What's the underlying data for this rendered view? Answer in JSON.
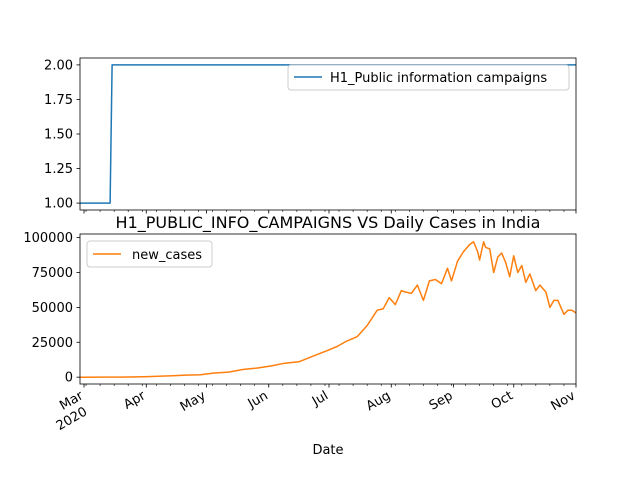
{
  "figure": {
    "xlabel": "Date",
    "month_ticks": [
      "Mar",
      "Apr",
      "May",
      "Jun",
      "Jul",
      "Aug",
      "Sep",
      "Oct",
      "Nov"
    ],
    "year_label": "2020"
  },
  "chart_data": [
    {
      "type": "line",
      "title": "",
      "xlabel": "",
      "ylabel": "",
      "x_range": [
        "2020-02-28",
        "2020-11-01"
      ],
      "ylim": [
        0.95,
        2.05
      ],
      "yticks": [
        "1.00",
        "1.25",
        "1.50",
        "1.75",
        "2.00"
      ],
      "grid": false,
      "legend_position": "top-right",
      "series": [
        {
          "name": "H1_Public information campaigns",
          "color": "#1f77b4",
          "x": [
            "2020-02-28",
            "2020-03-14",
            "2020-03-15",
            "2020-11-01"
          ],
          "y": [
            1,
            1,
            2,
            2
          ]
        }
      ]
    },
    {
      "type": "line",
      "title": "H1_PUBLIC_INFO_CAMPAIGNS VS Daily Cases in India",
      "xlabel": "Date",
      "ylabel": "",
      "x_range": [
        "2020-02-28",
        "2020-11-01"
      ],
      "ylim": [
        -4900,
        102600
      ],
      "yticks": [
        "0",
        "25000",
        "50000",
        "75000",
        "100000"
      ],
      "grid": false,
      "legend_position": "top-left",
      "series": [
        {
          "name": "new_cases",
          "color": "#ff7f0e",
          "x": [
            "2020-02-28",
            "2020-03-10",
            "2020-03-20",
            "2020-03-31",
            "2020-04-07",
            "2020-04-14",
            "2020-04-21",
            "2020-04-28",
            "2020-05-05",
            "2020-05-12",
            "2020-05-19",
            "2020-05-26",
            "2020-06-02",
            "2020-06-09",
            "2020-06-16",
            "2020-06-23",
            "2020-06-30",
            "2020-07-05",
            "2020-07-10",
            "2020-07-15",
            "2020-07-20",
            "2020-07-25",
            "2020-07-28",
            "2020-07-31",
            "2020-08-03",
            "2020-08-06",
            "2020-08-08",
            "2020-08-11",
            "2020-08-14",
            "2020-08-17",
            "2020-08-20",
            "2020-08-23",
            "2020-08-26",
            "2020-08-29",
            "2020-08-31",
            "2020-09-03",
            "2020-09-06",
            "2020-09-09",
            "2020-09-11",
            "2020-09-13",
            "2020-09-14",
            "2020-09-16",
            "2020-09-17",
            "2020-09-19",
            "2020-09-21",
            "2020-09-23",
            "2020-09-25",
            "2020-09-27",
            "2020-09-29",
            "2020-10-01",
            "2020-10-03",
            "2020-10-05",
            "2020-10-07",
            "2020-10-09",
            "2020-10-12",
            "2020-10-14",
            "2020-10-17",
            "2020-10-19",
            "2020-10-21",
            "2020-10-23",
            "2020-10-26",
            "2020-10-28",
            "2020-10-30",
            "2020-11-01"
          ],
          "y": [
            0,
            10,
            80,
            300,
            600,
            1000,
            1500,
            1800,
            3000,
            3600,
            5500,
            6500,
            8000,
            10000,
            11000,
            15000,
            19000,
            22000,
            26000,
            29000,
            37000,
            48000,
            49000,
            57000,
            52000,
            62000,
            61000,
            60000,
            66000,
            55000,
            69000,
            70000,
            67000,
            78000,
            69000,
            83000,
            90000,
            95000,
            97000,
            90000,
            84000,
            97000,
            93000,
            92000,
            75000,
            86000,
            89000,
            82000,
            72000,
            87000,
            75000,
            80000,
            68000,
            74000,
            62000,
            66000,
            61000,
            50000,
            55000,
            55000,
            45000,
            48000,
            48000,
            46000
          ]
        }
      ]
    }
  ]
}
